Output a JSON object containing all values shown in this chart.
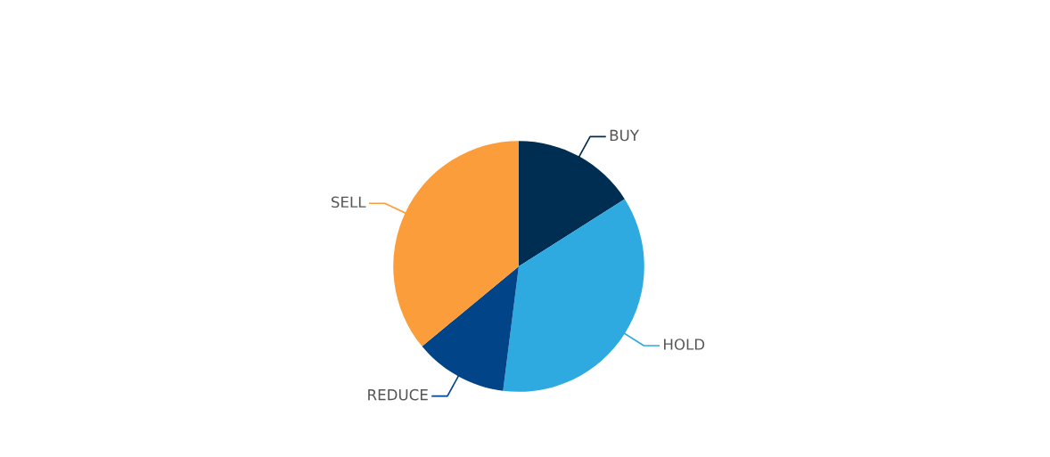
{
  "chart_data": {
    "type": "pie",
    "categories": [
      "BUY",
      "HOLD",
      "REDUCE",
      "SELL"
    ],
    "values": [
      16,
      36,
      12,
      36
    ],
    "colors": [
      "#002d52",
      "#2eaae1",
      "#024488",
      "#fb9d3b"
    ],
    "legend": false
  }
}
